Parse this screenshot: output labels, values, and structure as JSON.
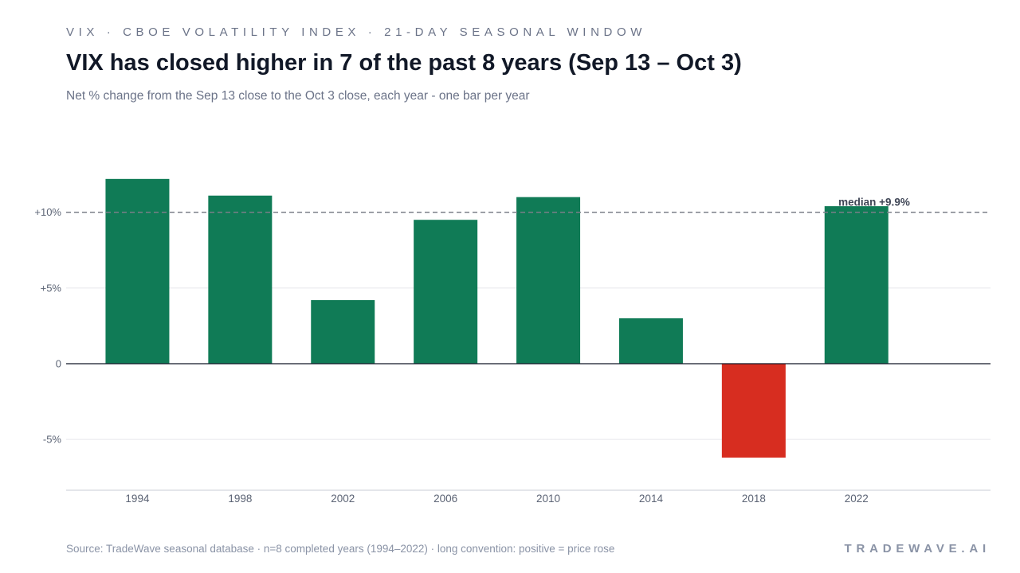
{
  "header": {
    "kicker": "VIX · CBOE VOLATILITY INDEX · 21-DAY SEASONAL WINDOW",
    "title": "VIX has closed higher in 7 of the past 8 years (Sep 13 – Oct 3)",
    "subtitle": "Net % change from the Sep 13 close to the Oct 3 close, each year - one bar per year"
  },
  "footer": {
    "source": "Source: TradeWave seasonal database · n=8 completed years (1994–2022) · long convention: positive = price rose",
    "brand": "TRADEWAVE.AI"
  },
  "chart_data": {
    "type": "bar",
    "categories": [
      "1994",
      "1998",
      "2002",
      "2006",
      "2010",
      "2014",
      "2018",
      "2022"
    ],
    "values": [
      12.2,
      11.1,
      4.2,
      9.5,
      11.0,
      3.0,
      -6.2,
      10.4
    ],
    "ylim": [
      -8.4,
      12.2
    ],
    "yticks": [
      {
        "value": 10,
        "label": "+10%"
      },
      {
        "value": 5,
        "label": "+5%"
      },
      {
        "value": 0,
        "label": "0"
      },
      {
        "value": -5,
        "label": "-5%"
      }
    ],
    "median": {
      "value": 10,
      "label": "median +9.9%"
    },
    "colors": {
      "positive": "#107b56",
      "negative": "#d72d20",
      "median_line": "#7b7f88",
      "zero_line": "#111827",
      "grid": "#e6e8ec",
      "axis_text": "#5c6475"
    },
    "grid": true,
    "legend": "none"
  }
}
